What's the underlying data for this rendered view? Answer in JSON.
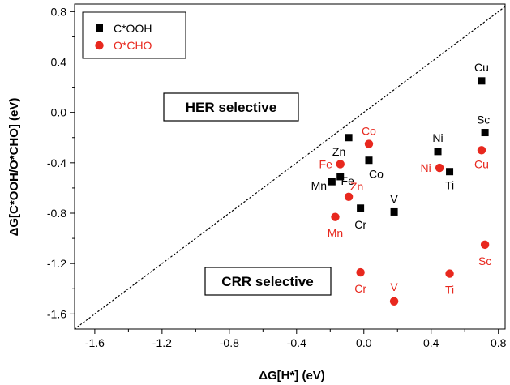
{
  "chart_data": {
    "type": "scatter",
    "xlabel": "ΔG[H*] (eV)",
    "ylabel": "ΔG[C*OOH/O*CHO] (eV)",
    "xlim": [
      -1.72,
      0.84
    ],
    "ylim": [
      -1.72,
      0.86
    ],
    "xticks": [
      -1.6,
      -1.2,
      -0.8,
      -0.4,
      0.0,
      0.4,
      0.8
    ],
    "xtick_labels": [
      "-1.6",
      "-1.2",
      "-0.8",
      "-0.4",
      "0.0",
      "0.4",
      "0.8"
    ],
    "yticks": [
      -1.6,
      -1.2,
      -0.8,
      -0.4,
      0.0,
      0.4,
      0.8
    ],
    "ytick_labels": [
      "-1.6",
      "-1.2",
      "-0.8",
      "-0.4",
      "0.0",
      "0.4",
      "0.8"
    ],
    "grid": false,
    "legend_position": "top-left",
    "diagonal": "y = x (dotted)",
    "region_labels": [
      "HER selective",
      "CRR selective"
    ],
    "series": [
      {
        "name": "C*OOH",
        "marker": "square",
        "color": "#000000",
        "points": [
          {
            "label": "Cu",
            "x": 0.7,
            "y": 0.25
          },
          {
            "label": "Sc",
            "x": 0.72,
            "y": -0.16
          },
          {
            "label": "Ni",
            "x": 0.44,
            "y": -0.31
          },
          {
            "label": "Ti",
            "x": 0.51,
            "y": -0.47
          },
          {
            "label": "Zn",
            "x": -0.09,
            "y": -0.2
          },
          {
            "label": "Co",
            "x": 0.03,
            "y": -0.38
          },
          {
            "label": "Fe",
            "x": -0.14,
            "y": -0.51
          },
          {
            "label": "Mn",
            "x": -0.19,
            "y": -0.55
          },
          {
            "label": "V",
            "x": 0.18,
            "y": -0.79
          },
          {
            "label": "Cr",
            "x": -0.02,
            "y": -0.76
          }
        ]
      },
      {
        "name": "O*CHO",
        "marker": "circle",
        "color": "#e8281e",
        "points": [
          {
            "label": "Co",
            "x": 0.03,
            "y": -0.25
          },
          {
            "label": "Cu",
            "x": 0.7,
            "y": -0.3
          },
          {
            "label": "Fe",
            "x": -0.14,
            "y": -0.41
          },
          {
            "label": "Ni",
            "x": 0.45,
            "y": -0.44
          },
          {
            "label": "Zn",
            "x": -0.09,
            "y": -0.67
          },
          {
            "label": "Mn",
            "x": -0.17,
            "y": -0.83
          },
          {
            "label": "Sc",
            "x": 0.72,
            "y": -1.05
          },
          {
            "label": "Cr",
            "x": -0.02,
            "y": -1.27
          },
          {
            "label": "Ti",
            "x": 0.51,
            "y": -1.28
          },
          {
            "label": "V",
            "x": 0.18,
            "y": -1.5
          }
        ]
      }
    ]
  }
}
